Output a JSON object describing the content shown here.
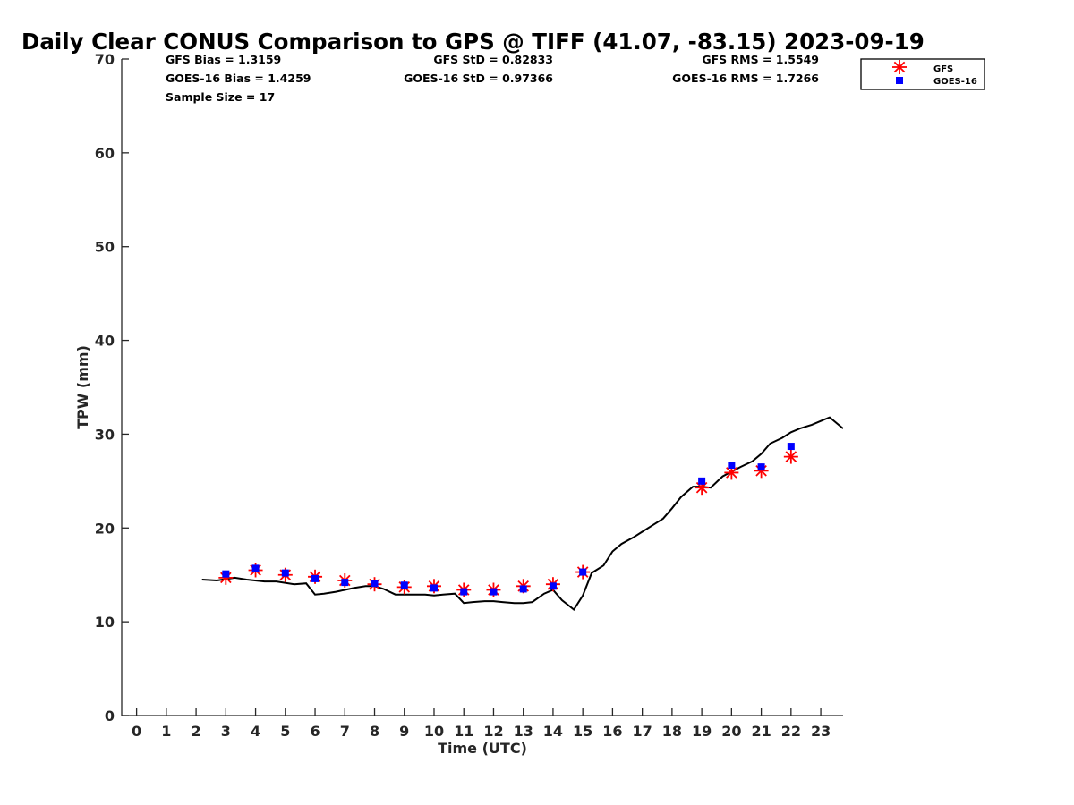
{
  "chart_data": {
    "type": "scatter",
    "title": "Daily Clear CONUS Comparison to GPS @ TIFF (41.07, -83.15) 2023-09-19",
    "xlabel": "Time (UTC)",
    "ylabel": "TPW (mm)",
    "xlim": [
      -0.5,
      23.75
    ],
    "ylim": [
      0,
      70
    ],
    "xticks": [
      0,
      1,
      2,
      3,
      4,
      5,
      6,
      7,
      8,
      9,
      10,
      11,
      12,
      13,
      14,
      15,
      16,
      17,
      18,
      19,
      20,
      21,
      22,
      23
    ],
    "yticks": [
      0,
      10,
      20,
      30,
      40,
      50,
      60,
      70
    ],
    "grid": false,
    "legend_position": "top-right",
    "stats": {
      "gfs_bias": "GFS Bias = 1.3159",
      "goes_bias": "GOES-16 Bias = 1.4259",
      "sample_size": "Sample Size = 17",
      "gfs_std": "GFS StD = 0.82833",
      "goes_std": "GOES-16 StD = 0.97366",
      "gfs_rms": "GFS RMS = 1.5549",
      "goes_rms": "GOES-16 RMS = 1.7266"
    },
    "series": [
      {
        "name": "GPS",
        "kind": "line",
        "color": "#000000",
        "x": [
          2.2,
          2.7,
          3.3,
          3.7,
          4.3,
          4.7,
          5.3,
          5.7,
          6.0,
          6.3,
          6.7,
          7.0,
          7.3,
          7.7,
          8.0,
          8.3,
          8.7,
          9.0,
          9.3,
          9.7,
          10.0,
          10.3,
          10.7,
          11.0,
          11.3,
          11.7,
          12.0,
          12.3,
          12.7,
          13.0,
          13.3,
          13.7,
          14.0,
          14.3,
          14.7,
          15.0,
          15.3,
          15.7,
          16.0,
          16.3,
          16.7,
          17.0,
          17.3,
          17.7,
          18.0,
          18.3,
          18.7,
          19.0,
          19.3,
          19.7,
          20.0,
          20.3,
          20.7,
          21.0,
          21.3,
          21.7,
          22.0,
          22.3,
          22.7,
          23.0,
          23.3,
          23.75
        ],
        "y": [
          14.5,
          14.4,
          14.7,
          14.5,
          14.3,
          14.3,
          14.0,
          14.1,
          12.9,
          13.0,
          13.2,
          13.4,
          13.6,
          13.8,
          13.8,
          13.5,
          12.9,
          12.9,
          12.9,
          12.9,
          12.8,
          12.9,
          13.0,
          12.0,
          12.1,
          12.2,
          12.2,
          12.1,
          12.0,
          12.0,
          12.1,
          13.0,
          13.4,
          12.3,
          11.3,
          12.8,
          15.2,
          16.0,
          17.5,
          18.3,
          19.0,
          19.6,
          20.2,
          21.0,
          22.1,
          23.3,
          24.4,
          24.4,
          24.3,
          25.5,
          26.0,
          26.5,
          27.1,
          27.9,
          29.0,
          29.6,
          30.2,
          30.6,
          31.0,
          31.4,
          31.8,
          30.6
        ]
      },
      {
        "name": "GFS",
        "kind": "marker-star",
        "color": "#ff0000",
        "x": [
          3,
          4,
          5,
          6,
          7,
          8,
          9,
          10,
          11,
          12,
          13,
          14,
          15,
          19,
          20,
          21,
          22
        ],
        "y": [
          14.7,
          15.5,
          15.0,
          14.8,
          14.4,
          14.0,
          13.7,
          13.8,
          13.4,
          13.4,
          13.8,
          14.0,
          15.3,
          24.3,
          25.9,
          26.1,
          27.6
        ]
      },
      {
        "name": "GOES-16",
        "kind": "marker-square",
        "color": "#0000ff",
        "x": [
          3,
          4,
          5,
          6,
          7,
          8,
          9,
          10,
          11,
          12,
          13,
          14,
          15,
          19,
          20,
          21,
          22
        ],
        "y": [
          15.1,
          15.7,
          15.2,
          14.6,
          14.2,
          14.1,
          13.9,
          13.6,
          13.2,
          13.2,
          13.5,
          13.8,
          15.3,
          25.0,
          26.7,
          26.5,
          28.7
        ]
      }
    ]
  }
}
